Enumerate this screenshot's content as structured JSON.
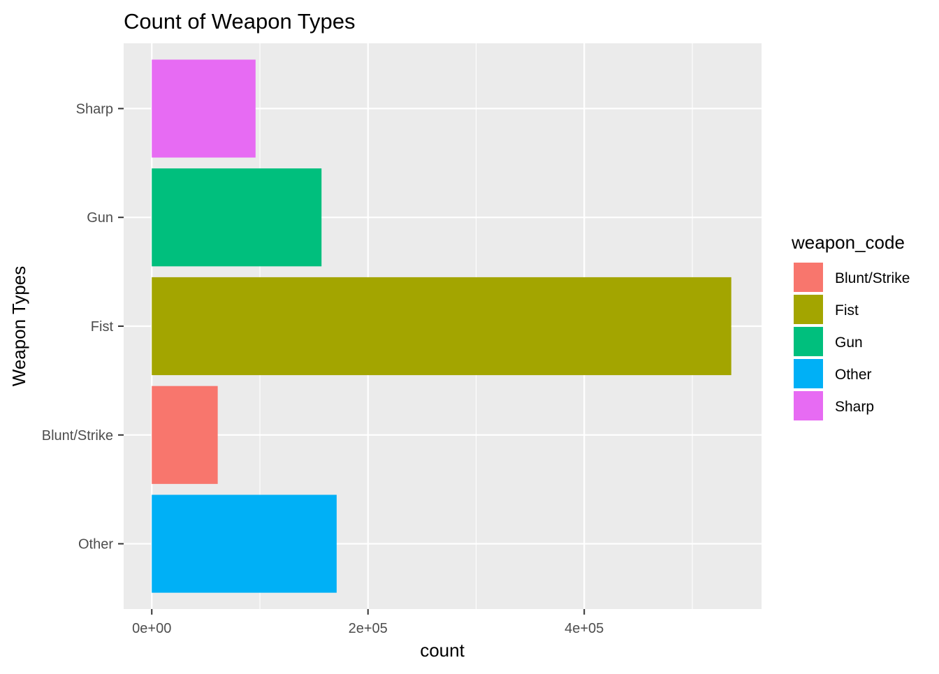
{
  "chart_data": {
    "type": "bar",
    "orientation": "horizontal",
    "title": "Count of Weapon Types",
    "xlabel": "count",
    "ylabel": "Weapon Types",
    "categories": [
      "Other",
      "Blunt/Strike",
      "Fist",
      "Gun",
      "Sharp"
    ],
    "values": [
      171000,
      61000,
      536000,
      157000,
      96000
    ],
    "colors": [
      "#00B0F6",
      "#F8766D",
      "#A3A500",
      "#00BF7D",
      "#E76BF3"
    ],
    "xlim": [
      -26000,
      564000
    ],
    "x_ticks": [
      {
        "value": 0,
        "label": "0e+00"
      },
      {
        "value": 200000,
        "label": "2e+05"
      },
      {
        "value": 400000,
        "label": "4e+05"
      }
    ],
    "x_minor_ticks": [
      100000,
      300000,
      500000
    ],
    "grid": true,
    "panel_background": "#EBEBEB",
    "legend": {
      "title": "weapon_code",
      "position": "right",
      "entries": [
        {
          "label": "Blunt/Strike",
          "color": "#F8766D"
        },
        {
          "label": "Fist",
          "color": "#A3A500"
        },
        {
          "label": "Gun",
          "color": "#00BF7D"
        },
        {
          "label": "Other",
          "color": "#00B0F6"
        },
        {
          "label": "Sharp",
          "color": "#E76BF3"
        }
      ]
    }
  }
}
